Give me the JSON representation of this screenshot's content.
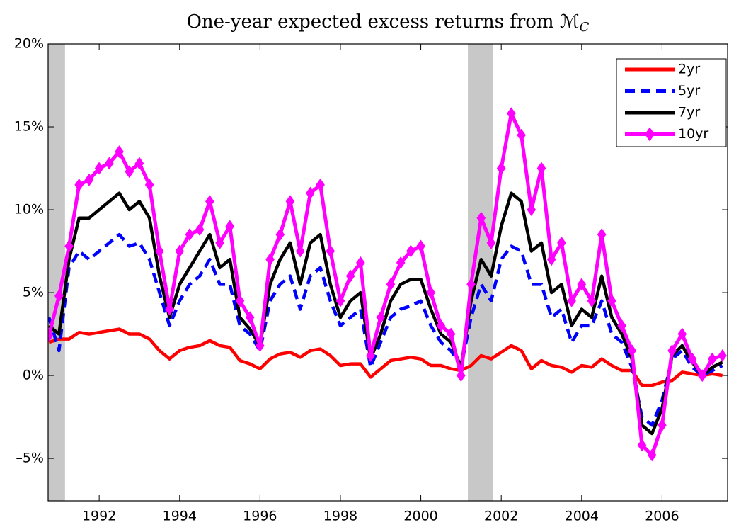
{
  "chart_data": {
    "type": "line",
    "title": "One-year expected excess returns from ℳ",
    "title_subscript": "C",
    "x": [
      1990.75,
      1991.0,
      1991.25,
      1991.5,
      1991.75,
      1992.0,
      1992.25,
      1992.5,
      1992.75,
      1993.0,
      1993.25,
      1993.5,
      1993.75,
      1994.0,
      1994.25,
      1994.5,
      1994.75,
      1995.0,
      1995.25,
      1995.5,
      1995.75,
      1996.0,
      1996.25,
      1996.5,
      1996.75,
      1997.0,
      1997.25,
      1997.5,
      1997.75,
      1998.0,
      1998.25,
      1998.5,
      1998.75,
      1999.0,
      1999.25,
      1999.5,
      1999.75,
      2000.0,
      2000.25,
      2000.5,
      2000.75,
      2001.0,
      2001.25,
      2001.5,
      2001.75,
      2002.0,
      2002.25,
      2002.5,
      2002.75,
      2003.0,
      2003.25,
      2003.5,
      2003.75,
      2004.0,
      2004.25,
      2004.5,
      2004.75,
      2005.0,
      2005.25,
      2005.5,
      2005.75,
      2006.0,
      2006.25,
      2006.5,
      2006.75,
      2007.0,
      2007.25,
      2007.5
    ],
    "series": [
      {
        "name": "2yr",
        "color": "#ff0000",
        "values": [
          2.0,
          2.2,
          2.2,
          2.6,
          2.5,
          2.6,
          2.7,
          2.8,
          2.5,
          2.5,
          2.2,
          1.5,
          1.0,
          1.5,
          1.7,
          1.8,
          2.1,
          1.8,
          1.7,
          0.9,
          0.7,
          0.4,
          1.0,
          1.3,
          1.4,
          1.1,
          1.5,
          1.6,
          1.2,
          0.6,
          0.7,
          0.7,
          -0.1,
          0.4,
          0.9,
          1.0,
          1.1,
          1.0,
          0.6,
          0.6,
          0.4,
          0.3,
          0.6,
          1.2,
          1.0,
          1.4,
          1.8,
          1.5,
          0.4,
          0.9,
          0.6,
          0.5,
          0.2,
          0.6,
          0.5,
          1.0,
          0.6,
          0.3,
          0.3,
          -0.6,
          -0.6,
          -0.4,
          -0.3,
          0.2,
          0.1,
          0.0,
          0.1,
          0.0
        ]
      },
      {
        "name": "5yr",
        "color": "#0000ff",
        "dashed": true,
        "values": [
          3.5,
          1.5,
          6.5,
          7.5,
          7.0,
          7.5,
          8.0,
          8.5,
          7.8,
          8.0,
          7.0,
          5.0,
          3.0,
          4.5,
          5.5,
          6.0,
          7.0,
          5.5,
          5.5,
          3.0,
          2.5,
          1.5,
          4.5,
          5.5,
          6.0,
          4.0,
          6.0,
          6.5,
          4.5,
          3.0,
          3.5,
          4.0,
          0.5,
          2.0,
          3.5,
          4.0,
          4.2,
          4.5,
          3.0,
          2.0,
          1.5,
          0.5,
          3.5,
          5.5,
          4.5,
          7.0,
          7.8,
          7.5,
          5.5,
          5.5,
          3.5,
          4.0,
          2.0,
          3.0,
          3.0,
          4.5,
          2.5,
          2.0,
          0.5,
          -2.5,
          -3.0,
          -1.5,
          1.0,
          1.5,
          0.5,
          0.0,
          0.3,
          0.6
        ]
      },
      {
        "name": "7yr",
        "color": "#000000",
        "values": [
          3.0,
          2.5,
          7.0,
          9.5,
          9.5,
          10.0,
          10.5,
          11.0,
          10.0,
          10.5,
          9.5,
          6.0,
          3.5,
          5.5,
          6.5,
          7.5,
          8.5,
          6.5,
          7.0,
          3.5,
          2.8,
          1.8,
          5.5,
          7.0,
          8.0,
          5.5,
          8.0,
          8.5,
          5.5,
          3.5,
          4.5,
          5.0,
          1.0,
          2.5,
          4.5,
          5.5,
          5.8,
          5.8,
          4.0,
          2.5,
          2.0,
          0.5,
          4.5,
          7.0,
          6.0,
          9.0,
          11.0,
          10.5,
          7.5,
          8.0,
          5.0,
          5.5,
          3.0,
          4.0,
          3.5,
          6.0,
          3.5,
          2.5,
          1.0,
          -3.0,
          -3.5,
          -2.0,
          1.2,
          1.8,
          0.8,
          0.0,
          0.5,
          0.8
        ]
      },
      {
        "name": "10yr",
        "color": "#ff00ff",
        "marker": "diamond",
        "values": [
          2.4,
          4.8,
          7.8,
          11.5,
          11.8,
          12.5,
          12.8,
          13.5,
          12.3,
          12.8,
          11.5,
          7.5,
          4.0,
          7.5,
          8.5,
          8.8,
          10.5,
          8.0,
          9.0,
          4.5,
          3.5,
          1.8,
          7.0,
          8.5,
          10.5,
          7.5,
          11.0,
          11.5,
          7.5,
          4.5,
          6.0,
          6.8,
          1.2,
          3.5,
          5.5,
          6.8,
          7.5,
          7.8,
          5.0,
          3.0,
          2.5,
          0.0,
          5.5,
          9.5,
          8.0,
          12.5,
          15.8,
          14.5,
          10.0,
          12.5,
          7.0,
          8.0,
          4.5,
          5.5,
          4.5,
          8.5,
          4.5,
          3.0,
          1.5,
          -4.2,
          -4.8,
          -3.0,
          1.5,
          2.5,
          1.0,
          0.0,
          1.0,
          1.2
        ]
      }
    ],
    "shaded_periods": [
      [
        1990.73,
        1991.15
      ],
      [
        2001.17,
        2001.8
      ]
    ],
    "xlim": [
      1990.73,
      2007.63
    ],
    "ylim": [
      -7.56,
      20
    ],
    "xticks": [
      1992,
      1994,
      1996,
      1998,
      2000,
      2002,
      2004,
      2006
    ],
    "yticks": [
      {
        "value": -5,
        "label": "–5%"
      },
      {
        "value": 0,
        "label": "0%"
      },
      {
        "value": 5,
        "label": "5%"
      },
      {
        "value": 10,
        "label": "10%"
      },
      {
        "value": 15,
        "label": "15%"
      },
      {
        "value": 20,
        "label": "20%"
      }
    ],
    "legend": "upper right",
    "grid": false
  }
}
